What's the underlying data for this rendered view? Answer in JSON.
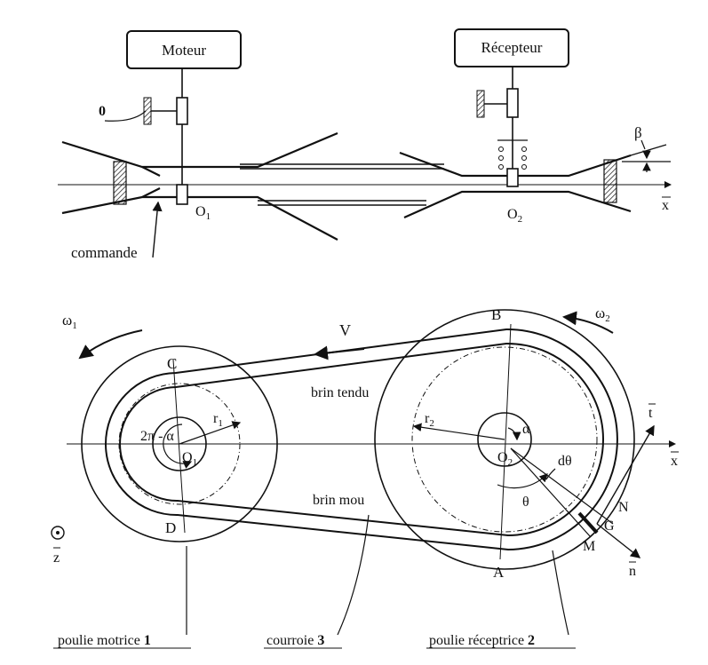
{
  "top": {
    "motor_label": "Moteur",
    "receiver_label": "Récepteur",
    "frame_label": "0",
    "beta_label": "β",
    "o1_label": "O",
    "o1_sub": "1",
    "o2_label": "O",
    "o2_sub": "2",
    "x_label": "x",
    "command_label": "commande"
  },
  "bottom": {
    "omega1_label": "ω",
    "omega1_sub": "1",
    "omega2_label": "ω",
    "omega2_sub": "2",
    "v_label": "V",
    "b_label": "B",
    "c_label": "C",
    "d_label": "D",
    "a_label": "A",
    "tight_strand_label": "brin tendu",
    "slack_strand_label": "brin mou",
    "r1_label": "r",
    "r1_sub": "1",
    "r2_label": "r",
    "r2_sub": "2",
    "angle_2pi_label": "2π - α",
    "alpha_label": "α",
    "o1_label": "O",
    "o1_sub": "1",
    "o2_label": "O",
    "o2_sub": "2",
    "theta_label": "θ",
    "dtheta_label": "dθ",
    "t_label": "t",
    "n_label": "n",
    "x_label": "x",
    "z_label": "z",
    "n_point_label": "N",
    "g_label": "G",
    "m_label": "M",
    "pulley1_caption": "poulie motrice",
    "pulley1_num": "1",
    "belt_caption": "courroie",
    "belt_num": "3",
    "pulley2_caption": "poulie réceptrice",
    "pulley2_num": "2"
  }
}
